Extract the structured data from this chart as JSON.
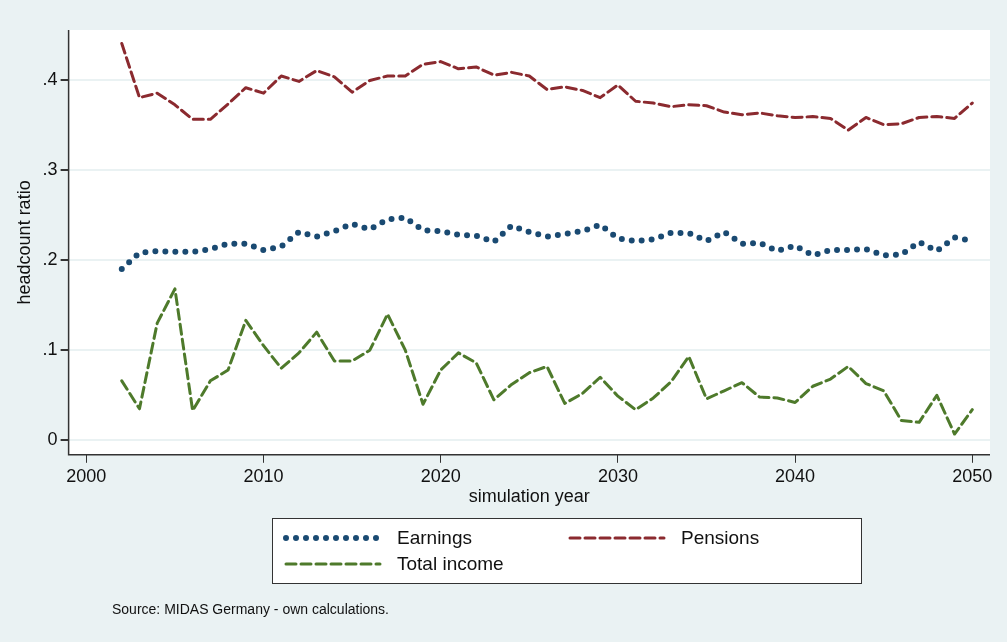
{
  "chart_data": {
    "type": "line",
    "xlabel": "simulation year",
    "ylabel": "headcount ratio",
    "x": [
      2002,
      2003,
      2004,
      2005,
      2006,
      2007,
      2008,
      2009,
      2010,
      2011,
      2012,
      2013,
      2014,
      2015,
      2016,
      2017,
      2018,
      2019,
      2020,
      2021,
      2022,
      2023,
      2024,
      2025,
      2026,
      2027,
      2028,
      2029,
      2030,
      2031,
      2032,
      2033,
      2034,
      2035,
      2036,
      2037,
      2038,
      2039,
      2040,
      2041,
      2042,
      2043,
      2044,
      2045,
      2046,
      2047,
      2048,
      2049,
      2050
    ],
    "series": [
      {
        "name": "Earnings",
        "color": "#1a4a72",
        "line_style": "dotted",
        "values": [
          0.19,
          0.208,
          0.21,
          0.209,
          0.209,
          0.212,
          0.218,
          0.218,
          0.211,
          0.215,
          0.231,
          0.226,
          0.232,
          0.24,
          0.234,
          0.245,
          0.247,
          0.233,
          0.232,
          0.228,
          0.227,
          0.22,
          0.238,
          0.231,
          0.226,
          0.229,
          0.232,
          0.239,
          0.224,
          0.221,
          0.223,
          0.23,
          0.23,
          0.221,
          0.231,
          0.218,
          0.219,
          0.21,
          0.216,
          0.205,
          0.211,
          0.211,
          0.212,
          0.205,
          0.206,
          0.22,
          0.21,
          0.225,
          0.221
        ]
      },
      {
        "name": "Pensions",
        "color": "#8b2a2f",
        "line_style": "dashed",
        "values": [
          0.44,
          0.38,
          0.385,
          0.372,
          0.356,
          0.356,
          0.373,
          0.391,
          0.385,
          0.404,
          0.398,
          0.41,
          0.403,
          0.386,
          0.399,
          0.404,
          0.404,
          0.417,
          0.42,
          0.412,
          0.414,
          0.405,
          0.408,
          0.404,
          0.389,
          0.392,
          0.388,
          0.38,
          0.394,
          0.376,
          0.374,
          0.37,
          0.372,
          0.371,
          0.364,
          0.361,
          0.363,
          0.36,
          0.358,
          0.359,
          0.357,
          0.344,
          0.358,
          0.35,
          0.351,
          0.358,
          0.359,
          0.357,
          0.374
        ]
      },
      {
        "name": "Total income",
        "color": "#4e7a2b",
        "line_style": "dashed",
        "values": [
          0.066,
          0.035,
          0.13,
          0.168,
          0.033,
          0.066,
          0.078,
          0.133,
          0.105,
          0.08,
          0.097,
          0.12,
          0.088,
          0.088,
          0.1,
          0.14,
          0.1,
          0.04,
          0.078,
          0.097,
          0.086,
          0.045,
          0.062,
          0.075,
          0.082,
          0.041,
          0.052,
          0.07,
          0.049,
          0.034,
          0.047,
          0.065,
          0.093,
          0.046,
          0.055,
          0.064,
          0.048,
          0.047,
          0.042,
          0.06,
          0.068,
          0.082,
          0.063,
          0.055,
          0.022,
          0.02,
          0.05,
          0.007,
          0.034
        ]
      }
    ],
    "xlim": [
      1999,
      2051
    ],
    "xticks": [
      2000,
      2010,
      2020,
      2030,
      2040,
      2050
    ],
    "ylim": [
      -0.016,
      0.455
    ],
    "yticks": [
      {
        "value": 0,
        "label": "0"
      },
      {
        "value": 0.1,
        "label": ".1"
      },
      {
        "value": 0.2,
        "label": ".2"
      },
      {
        "value": 0.3,
        "label": ".3"
      },
      {
        "value": 0.4,
        "label": ".4"
      }
    ],
    "grid": "y",
    "legend": "bottom",
    "marker": "none",
    "annotations": [
      "Source: MIDAS Germany - own calculations."
    ]
  }
}
